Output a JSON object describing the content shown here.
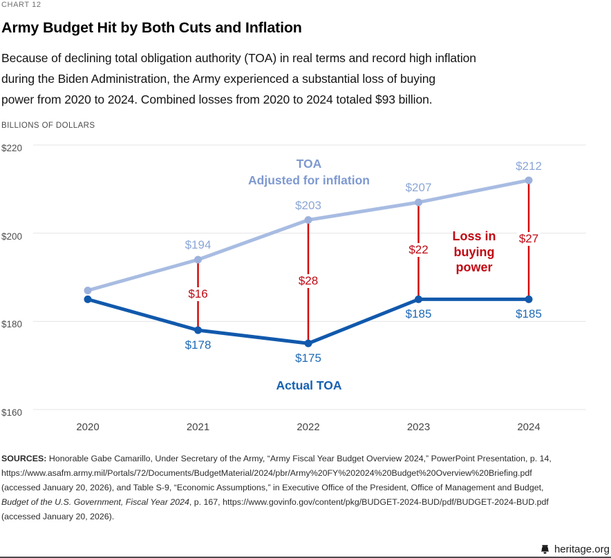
{
  "header": {
    "kicker": "CHART 12",
    "title": "Army Budget Hit by Both Cuts and Inflation",
    "description_lines": [
      "Because of declining total obligation authority (TOA) in real terms and record high inflation",
      "during the Biden Administration, the Army experienced a substantial loss of buying",
      "power from 2020 to 2024. Combined losses from 2020 to 2024 totaled $93 billion."
    ]
  },
  "chart_data": {
    "type": "line",
    "title": "Army Budget Hit by Both Cuts and Inflation",
    "y_axis_title": "BILLIONS OF DOLLARS",
    "xlabel": "",
    "ylabel": "Billions of dollars",
    "ylim": [
      160,
      220
    ],
    "grid": "horizontal",
    "categories": [
      "2020",
      "2021",
      "2022",
      "2023",
      "2024"
    ],
    "y_ticks": [
      {
        "value": 220,
        "label": "$220"
      },
      {
        "value": 200,
        "label": "$200"
      },
      {
        "value": 180,
        "label": "$180"
      },
      {
        "value": 160,
        "label": "$160"
      }
    ],
    "series": [
      {
        "name": "TOA Adjusted for inflation",
        "values": [
          187,
          194,
          203,
          207,
          212
        ],
        "point_labels": [
          null,
          "$194",
          "$203",
          "$207",
          "$212"
        ],
        "line_color": "#a8bce2",
        "marker_color": "#9db2dc",
        "label_color": "#8ba6d6"
      },
      {
        "name": "Actual TOA",
        "values": [
          185,
          178,
          175,
          185,
          185
        ],
        "point_labels": [
          null,
          "$178",
          "$175",
          "$185",
          "$185"
        ],
        "line_color": "#1159ac",
        "marker_color": "#1159ac",
        "label_color": "#1e6ab5"
      }
    ],
    "loss_connectors": {
      "labels": [
        null,
        "$16",
        "$28",
        "$22",
        "$27"
      ],
      "line_color": "#d20a0a",
      "label_color": "#c00712"
    },
    "annotations": {
      "adjusted_label": "TOA\nAdjusted for inflation",
      "adjusted_label_color": "#7e99d0",
      "actual_label": "Actual TOA",
      "actual_label_color": "#1660b2",
      "loss_label": "Loss in\nbuying\npower",
      "loss_label_color": "#c00712"
    },
    "grid_color": "#e4e4e4"
  },
  "sources": {
    "lines": [
      [
        {
          "b": 1,
          "t": "SOURCES:"
        },
        {
          "t": " Honorable Gabe Camarillo, Under Secretary of the Army, “Army Fiscal Year Budget Overview 2024,” PowerPoint Presentation, p. 14,"
        }
      ],
      [
        {
          "t": "https://www.asafm.army.mil/Portals/72/Documents/BudgetMaterial/2024/pbr/Army%20FY%202024%20Budget%20Overview%20Briefing.pdf"
        }
      ],
      [
        {
          "t": "(accessed January 20, 2026), and Table S-9, “Economic Assumptions,” in Executive Office of the President, Office of Management and Budget,"
        }
      ],
      [
        {
          "i": 1,
          "t": "Budget of the U.S. Government, Fiscal Year 2024"
        },
        {
          "t": ", p. 167, https://www.govinfo.gov/content/pkg/BUDGET-2024-BUD/pdf/BUDGET-2024-BUD.pdf"
        }
      ],
      [
        {
          "t": "(accessed January 20, 2026)."
        }
      ]
    ]
  },
  "footer": {
    "site": "heritage.org"
  }
}
